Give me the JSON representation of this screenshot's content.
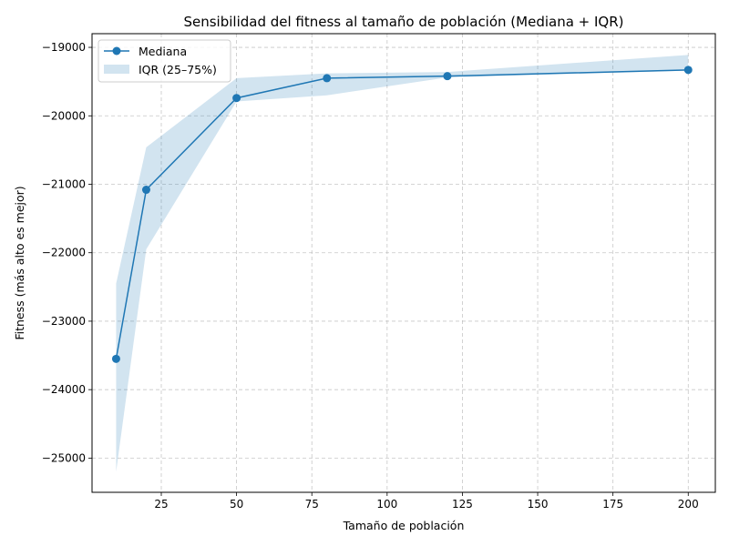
{
  "chart_data": {
    "type": "line",
    "title": "Sensibilidad del fitness al tamaño de población (Mediana + IQR)",
    "xlabel": "Tamaño de población",
    "ylabel": "Fitness (más alto es mejor)",
    "xlim": [
      2,
      209
    ],
    "ylim": [
      -25500,
      -18800
    ],
    "xticks": [
      25,
      50,
      75,
      100,
      125,
      150,
      175,
      200
    ],
    "yticks": [
      -25000,
      -24000,
      -23000,
      -22000,
      -21000,
      -20000,
      -19000
    ],
    "grid": true,
    "legend_position": "top-left",
    "x": [
      10,
      20,
      50,
      80,
      120,
      200
    ],
    "series": [
      {
        "name": "Mediana",
        "kind": "line-markers",
        "color": "#1f77b4",
        "values": [
          -23550,
          -21080,
          -19740,
          -19450,
          -19420,
          -19330
        ]
      },
      {
        "name": "IQR (25–75%)",
        "kind": "band",
        "color": "#1f77b4",
        "lower": [
          -25200,
          -21950,
          -19790,
          -19700,
          -19440,
          -19340
        ],
        "upper": [
          -22450,
          -20460,
          -19450,
          -19380,
          -19360,
          -19110
        ]
      }
    ]
  }
}
